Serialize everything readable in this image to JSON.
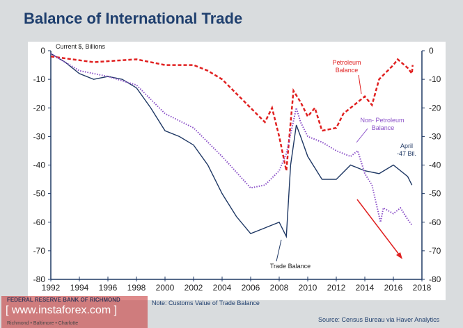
{
  "title": "Balance of International Trade",
  "note": "Note: Customs Value of Trade Balance",
  "source": "Source: Census Bureau via Haver Analytics",
  "logo": {
    "name": "FEDERAL RESERVE BANK OF RICHMOND",
    "cities": "Richmond • Baltimore • Charlotte"
  },
  "watermark": "[ www.instaforex.com ]",
  "chart_data": {
    "type": "line",
    "ylabel": "Current $, Billions",
    "xlim": [
      1992,
      2018
    ],
    "ylim": [
      -80,
      0
    ],
    "xticks": [
      1992,
      1994,
      1996,
      1998,
      2000,
      2002,
      2004,
      2006,
      2008,
      2010,
      2012,
      2014,
      2016,
      2018
    ],
    "yticks": [
      0,
      -10,
      -20,
      -30,
      -40,
      -50,
      -60,
      -70,
      -80
    ],
    "colors": {
      "trade": "#1f3864",
      "petroleum": "#e02020",
      "nonpetroleum": "#8a4fc8",
      "arrow": "#e02020"
    },
    "series": [
      {
        "name": "Trade Balance",
        "style": "solid",
        "x": [
          1992,
          1993,
          1994,
          1995,
          1996,
          1997,
          1998,
          1999,
          2000,
          2001,
          2002,
          2003,
          2004,
          2005,
          2006,
          2007,
          2008,
          2008.5,
          2008.8,
          2009.2,
          2009.5,
          2010,
          2011,
          2012,
          2013,
          2014,
          2015,
          2016,
          2017,
          2017.3
        ],
        "y": [
          -1,
          -4,
          -8,
          -10,
          -9,
          -10,
          -13,
          -20,
          -28,
          -30,
          -33,
          -40,
          -50,
          -58,
          -64,
          -62,
          -60,
          -65,
          -40,
          -26,
          -30,
          -37,
          -45,
          -45,
          -40,
          -42,
          -43,
          -40,
          -44,
          -47
        ]
      },
      {
        "name": "Petroleum Balance",
        "style": "dashed",
        "x": [
          1992,
          1995,
          1998,
          1999,
          2000,
          2002,
          2003,
          2004,
          2005,
          2006,
          2007,
          2007.5,
          2008,
          2008.5,
          2009,
          2009.5,
          2010,
          2010.5,
          2011,
          2012,
          2012.5,
          2013,
          2014,
          2014.5,
          2015,
          2016,
          2016.3,
          2017,
          2017.3,
          2017.35
        ],
        "y": [
          -2,
          -4,
          -3,
          -4,
          -5,
          -5,
          -7,
          -10,
          -15,
          -20,
          -25,
          -20,
          -30,
          -42,
          -14,
          -18,
          -23,
          -20,
          -28,
          -27,
          -22,
          -20,
          -16,
          -19,
          -10,
          -5,
          -3,
          -6,
          -8,
          -5
        ]
      },
      {
        "name": "Non- Petroleum Balance",
        "style": "dotted",
        "x": [
          1992,
          1994,
          1996,
          1998,
          2000,
          2002,
          2004,
          2006,
          2007,
          2008,
          2008.5,
          2009.2,
          2009.5,
          2010,
          2011,
          2012,
          2013,
          2013.5,
          2014,
          2014.5,
          2015.1,
          2015.3,
          2016,
          2016.5,
          2017,
          2017.3
        ],
        "y": [
          -1,
          -7,
          -9,
          -12,
          -22,
          -27,
          -37,
          -48,
          -47,
          -42,
          -36,
          -20,
          -25,
          -30,
          -32,
          -35,
          -37,
          -35,
          -43,
          -47,
          -60,
          -55,
          -57,
          -55,
          -59,
          -61
        ]
      }
    ],
    "annotations": [
      "Petroleum Balance",
      "Non- Petroleum Balance",
      "Trade Balance",
      "April -47 Bil."
    ]
  }
}
